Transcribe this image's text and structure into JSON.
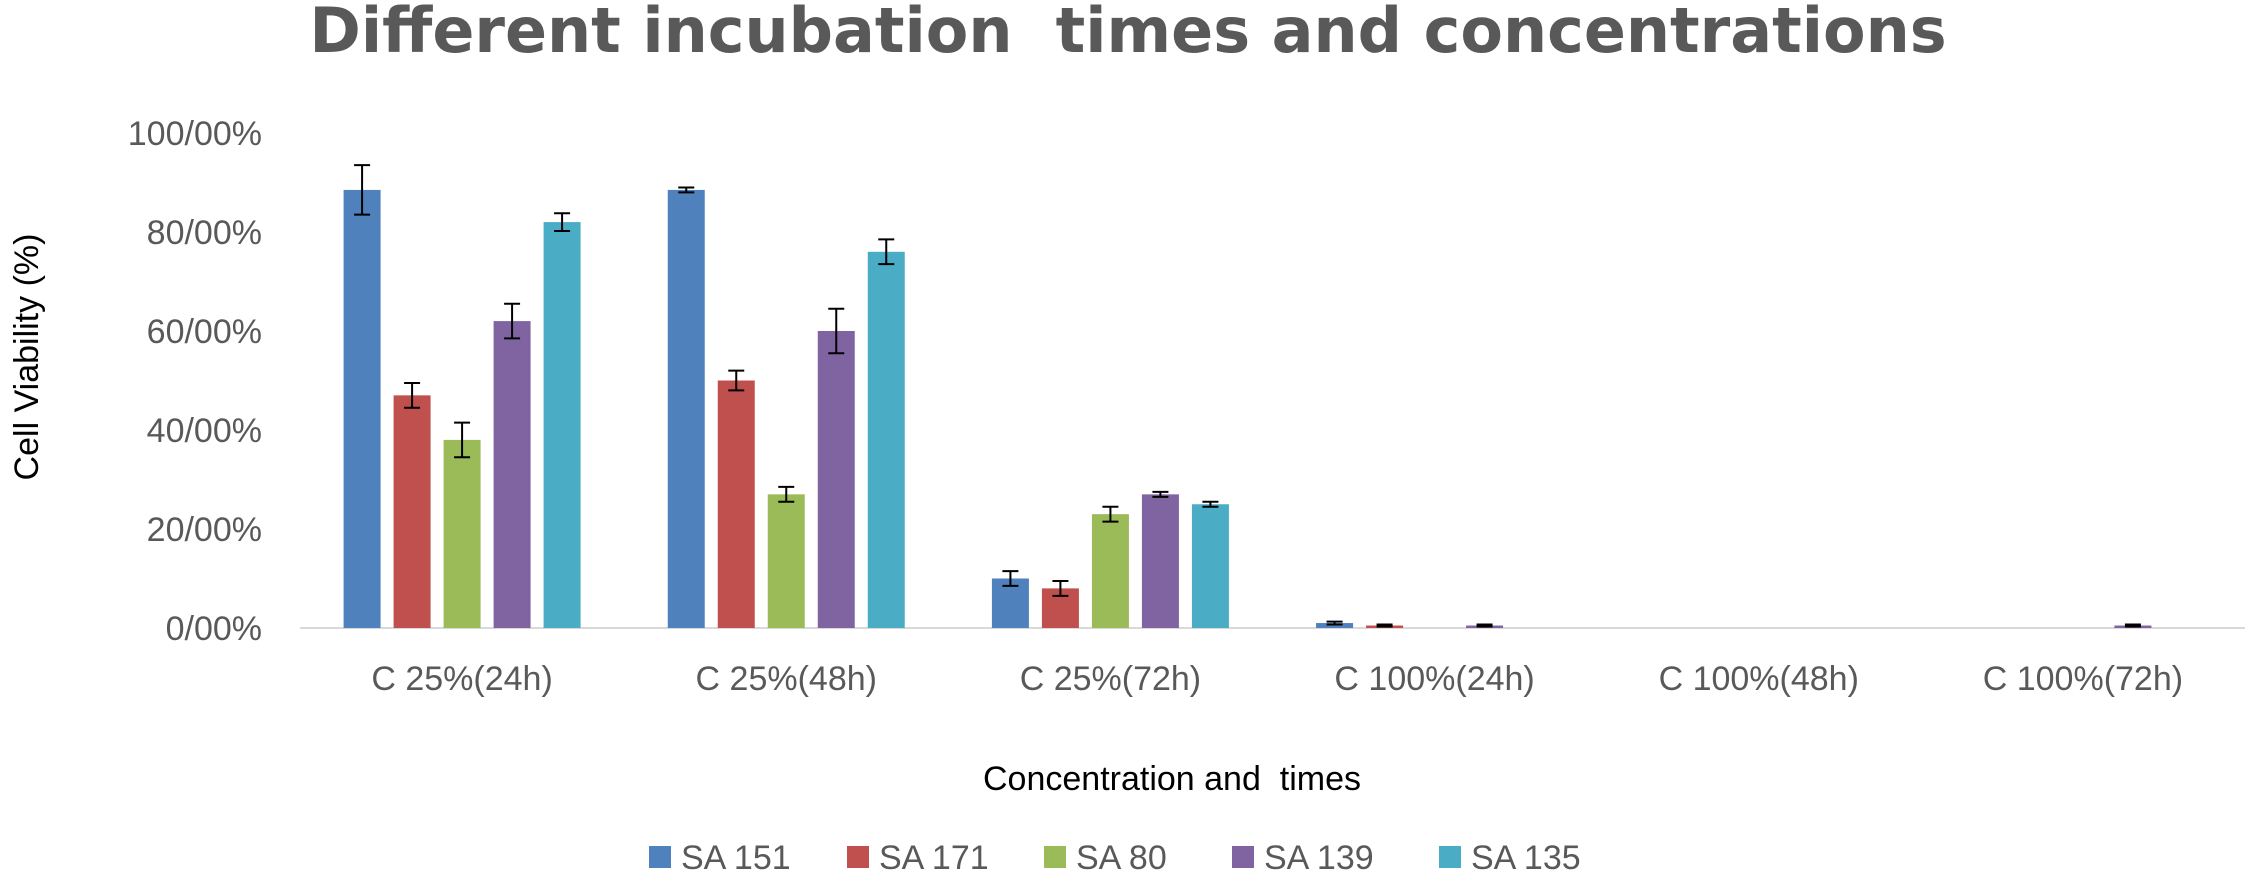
{
  "chart_data": {
    "type": "bar",
    "title": "Different incubation  times and concentrations",
    "xlabel": "Concentration and  times",
    "ylabel": "Cell Viability (%)",
    "ylim": [
      0,
      100
    ],
    "y_ticks": [
      0,
      20,
      40,
      60,
      80,
      100
    ],
    "y_tick_labels": [
      "0/00%",
      "20/00%",
      "40/00%",
      "60/00%",
      "80/00%",
      "100/00%"
    ],
    "categories": [
      "C 25%(24h)",
      "C 25%(48h)",
      "C 25%(72h)",
      "C 100%(24h)",
      "C 100%(48h)",
      "C 100%(72h)"
    ],
    "series": [
      {
        "name": "SA 151",
        "color": "#4f81bd",
        "values": [
          88.5,
          88.5,
          10,
          1,
          0,
          0
        ],
        "errors": [
          5,
          0.5,
          1.5,
          0.3,
          0,
          0
        ]
      },
      {
        "name": "SA 171",
        "color": "#c0504d",
        "values": [
          47,
          50,
          8,
          0.5,
          0,
          0
        ],
        "errors": [
          2.5,
          2,
          1.5,
          0.2,
          0,
          0
        ]
      },
      {
        "name": "SA 80",
        "color": "#9bbb59",
        "values": [
          38,
          27,
          23,
          0,
          0,
          0
        ],
        "errors": [
          3.5,
          1.5,
          1.5,
          0,
          0,
          0
        ]
      },
      {
        "name": "SA 139",
        "color": "#8064a2",
        "values": [
          62,
          60,
          27,
          0.5,
          0,
          0.5
        ],
        "errors": [
          3.5,
          4.5,
          0.5,
          0.2,
          0,
          0.2
        ]
      },
      {
        "name": "SA 135",
        "color": "#4bacc6",
        "values": [
          82,
          76,
          25,
          0,
          0,
          0
        ],
        "errors": [
          1.8,
          2.5,
          0.5,
          0,
          0,
          0
        ]
      }
    ],
    "grid": false,
    "legend_position": "bottom"
  }
}
